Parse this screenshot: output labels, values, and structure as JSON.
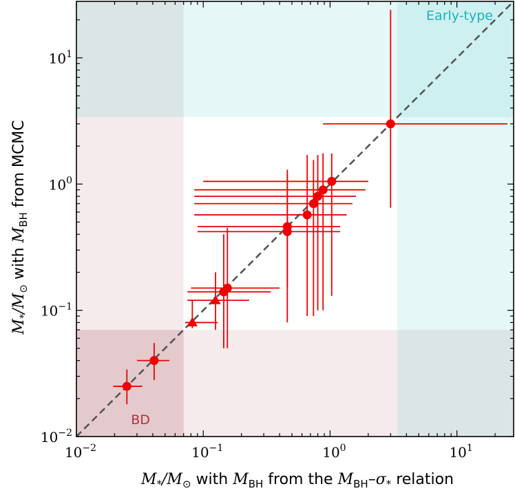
{
  "chart_data": {
    "type": "scatter",
    "title": "",
    "xlabel": {
      "pre": "M",
      "sub1": "*",
      "mid": "/M",
      "sub2": "⊙",
      "text1": " with ",
      "m2": "M",
      "sub3": "BH",
      "text2": " from the ",
      "m3": "M",
      "sub4": "BH",
      "text3": "–",
      "m4": "σ",
      "sub5": "*",
      "text4": " relation"
    },
    "ylabel": {
      "pre": "M",
      "sub1": "*",
      "mid": "/M",
      "sub2": "⊙",
      "text1": " with ",
      "m2": "M",
      "sub3": "BH",
      "text2": " from MCMC"
    },
    "x_scale": "log",
    "y_scale": "log",
    "xlim": [
      0.01,
      28
    ],
    "ylim": [
      0.01,
      28
    ],
    "x_ticks": [
      {
        "value": 0.01,
        "label": "10",
        "exp": "−2"
      },
      {
        "value": 0.1,
        "label": "10",
        "exp": "−1"
      },
      {
        "value": 1,
        "label": "10",
        "exp": "0"
      },
      {
        "value": 10,
        "label": "10",
        "exp": "1"
      }
    ],
    "y_ticks": [
      {
        "value": 0.01,
        "label": "10",
        "exp": "−2"
      },
      {
        "value": 0.1,
        "label": "10",
        "exp": "−1"
      },
      {
        "value": 1,
        "label": "10",
        "exp": "0"
      },
      {
        "value": 10,
        "label": "10",
        "exp": "1"
      }
    ],
    "identity_line": true,
    "regions": [
      {
        "name": "BD",
        "x_max": 0.07,
        "y_max": 0.07,
        "color": "#b2666e"
      },
      {
        "name": "Early-type",
        "x_min": 3.4,
        "y_min": 3.4,
        "color": "#34c1c4"
      }
    ],
    "region_labels": [
      {
        "text": "BD",
        "x": 0.032,
        "y": 0.0125,
        "color": "#b03040"
      },
      {
        "text": "Early-type",
        "x": 10.5,
        "y": 20,
        "color": "#1bb2b8"
      }
    ],
    "colors": {
      "points": "#ee0000",
      "identity": "#555555"
    },
    "series": [
      {
        "marker": "circle",
        "points": [
          {
            "x": 0.025,
            "y": 0.025,
            "xerr": [
              0.0195,
              0.033
            ],
            "yerr": [
              0.018,
              0.034
            ]
          },
          {
            "x": 0.041,
            "y": 0.04,
            "xerr": [
              0.03,
              0.054
            ],
            "yerr": [
              0.028,
              0.055
            ]
          },
          {
            "x": 0.145,
            "y": 0.14,
            "xerr": [
              0.075,
              0.34
            ],
            "yerr": [
              0.05,
              0.4
            ]
          },
          {
            "x": 0.155,
            "y": 0.15,
            "xerr": [
              0.08,
              0.4
            ],
            "yerr": [
              0.05,
              0.45
            ]
          },
          {
            "x": 0.46,
            "y": 0.46,
            "xerr": [
              0.09,
              1.2
            ],
            "yerr": [
              0.15,
              1.2
            ]
          },
          {
            "x": 0.46,
            "y": 0.42,
            "xerr": [
              0.09,
              1.2
            ],
            "yerr": [
              0.08,
              1.3
            ]
          },
          {
            "x": 0.66,
            "y": 0.57,
            "xerr": [
              0.085,
              1.35
            ],
            "yerr": [
              0.09,
              1.7
            ]
          },
          {
            "x": 0.74,
            "y": 0.7,
            "xerr": [
              0.085,
              1.5
            ],
            "yerr": [
              0.09,
              1.55
            ]
          },
          {
            "x": 0.8,
            "y": 0.8,
            "xerr": [
              0.085,
              1.6
            ],
            "yerr": [
              0.1,
              1.7
            ]
          },
          {
            "x": 0.88,
            "y": 0.9,
            "xerr": [
              0.085,
              1.9
            ],
            "yerr": [
              0.1,
              1.75
            ]
          },
          {
            "x": 1.03,
            "y": 1.05,
            "xerr": [
              0.1,
              2.0
            ],
            "yerr": [
              0.13,
              1.75
            ]
          },
          {
            "x": 3.0,
            "y": 3.0,
            "xerr": [
              0.88,
              25
            ],
            "yerr": [
              0.65,
              24
            ]
          }
        ]
      },
      {
        "marker": "triangle",
        "points": [
          {
            "x": 0.082,
            "y": 0.08,
            "xerr": [
              0.072,
              0.13
            ],
            "yerr": [
              0.072,
              0.12
            ]
          },
          {
            "x": 0.125,
            "y": 0.12,
            "xerr": [
              0.075,
              0.23
            ],
            "yerr": [
              0.07,
              0.2
            ]
          }
        ]
      }
    ]
  }
}
